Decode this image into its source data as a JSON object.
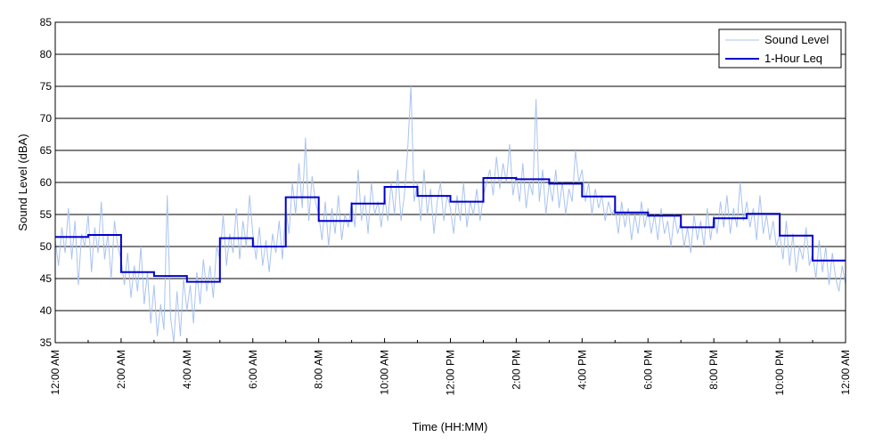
{
  "chart_data": {
    "type": "line",
    "xlabel": "Time (HH:MM)",
    "ylabel": "Sound Level (dBA)",
    "ylim": [
      35,
      85
    ],
    "yticks": [
      35,
      40,
      45,
      50,
      55,
      60,
      65,
      70,
      75,
      80,
      85
    ],
    "xlim_hours": [
      0,
      24
    ],
    "x_tick_hours": [
      0,
      2,
      4,
      6,
      8,
      10,
      12,
      14,
      16,
      18,
      20,
      22,
      24
    ],
    "x_tick_labels": [
      "12:00 AM",
      "2:00 AM",
      "4:00 AM",
      "6:00 AM",
      "8:00 AM",
      "10:00 AM",
      "12:00 PM",
      "2:00 PM",
      "4:00 PM",
      "6:00 PM",
      "8:00 PM",
      "10:00 PM",
      "12:00 AM"
    ],
    "grid": "horizontal",
    "legend_position": "top-right",
    "legend": [
      "Sound Level",
      "1-Hour Leq"
    ],
    "colors": {
      "sound_level": "#a9c3f0",
      "leq": "#0000cc"
    },
    "series": [
      {
        "name": "Sound Level",
        "style": "thin-light-line",
        "points": [
          [
            0.0,
            51
          ],
          [
            0.1,
            47
          ],
          [
            0.2,
            53
          ],
          [
            0.3,
            49
          ],
          [
            0.4,
            56
          ],
          [
            0.5,
            48
          ],
          [
            0.6,
            54
          ],
          [
            0.7,
            44
          ],
          [
            0.8,
            52
          ],
          [
            0.9,
            50
          ],
          [
            1.0,
            55
          ],
          [
            1.1,
            46
          ],
          [
            1.2,
            53
          ],
          [
            1.3,
            49
          ],
          [
            1.4,
            57
          ],
          [
            1.5,
            48
          ],
          [
            1.6,
            52
          ],
          [
            1.7,
            45
          ],
          [
            1.8,
            54
          ],
          [
            1.9,
            50
          ],
          [
            2.0,
            48
          ],
          [
            2.1,
            44
          ],
          [
            2.2,
            49
          ],
          [
            2.3,
            42
          ],
          [
            2.4,
            47
          ],
          [
            2.5,
            43
          ],
          [
            2.6,
            50
          ],
          [
            2.7,
            41
          ],
          [
            2.8,
            46
          ],
          [
            2.9,
            38
          ],
          [
            3.0,
            44
          ],
          [
            3.1,
            36
          ],
          [
            3.2,
            41
          ],
          [
            3.3,
            37
          ],
          [
            3.4,
            58
          ],
          [
            3.5,
            39
          ],
          [
            3.6,
            35
          ],
          [
            3.7,
            43
          ],
          [
            3.8,
            36
          ],
          [
            3.9,
            45
          ],
          [
            4.0,
            40
          ],
          [
            4.1,
            44
          ],
          [
            4.2,
            38
          ],
          [
            4.3,
            46
          ],
          [
            4.4,
            41
          ],
          [
            4.5,
            48
          ],
          [
            4.6,
            43
          ],
          [
            4.7,
            47
          ],
          [
            4.8,
            42
          ],
          [
            4.9,
            50
          ],
          [
            5.0,
            48
          ],
          [
            5.1,
            55
          ],
          [
            5.2,
            47
          ],
          [
            5.3,
            52
          ],
          [
            5.4,
            49
          ],
          [
            5.5,
            56
          ],
          [
            5.6,
            48
          ],
          [
            5.7,
            54
          ],
          [
            5.8,
            50
          ],
          [
            5.9,
            58
          ],
          [
            6.0,
            52
          ],
          [
            6.1,
            48
          ],
          [
            6.2,
            53
          ],
          [
            6.3,
            47
          ],
          [
            6.4,
            51
          ],
          [
            6.5,
            46
          ],
          [
            6.6,
            52
          ],
          [
            6.7,
            49
          ],
          [
            6.8,
            54
          ],
          [
            6.9,
            48
          ],
          [
            7.0,
            56
          ],
          [
            7.1,
            52
          ],
          [
            7.2,
            60
          ],
          [
            7.3,
            55
          ],
          [
            7.4,
            63
          ],
          [
            7.5,
            56
          ],
          [
            7.6,
            67
          ],
          [
            7.7,
            54
          ],
          [
            7.8,
            61
          ],
          [
            7.9,
            57
          ],
          [
            8.0,
            55
          ],
          [
            8.1,
            51
          ],
          [
            8.2,
            57
          ],
          [
            8.3,
            50
          ],
          [
            8.4,
            56
          ],
          [
            8.5,
            52
          ],
          [
            8.6,
            58
          ],
          [
            8.7,
            51
          ],
          [
            8.8,
            55
          ],
          [
            8.9,
            53
          ],
          [
            9.0,
            57
          ],
          [
            9.1,
            53
          ],
          [
            9.2,
            62
          ],
          [
            9.3,
            54
          ],
          [
            9.4,
            58
          ],
          [
            9.5,
            52
          ],
          [
            9.6,
            60
          ],
          [
            9.7,
            55
          ],
          [
            9.8,
            57
          ],
          [
            9.9,
            53
          ],
          [
            10.0,
            58
          ],
          [
            10.1,
            54
          ],
          [
            10.2,
            60
          ],
          [
            10.3,
            55
          ],
          [
            10.4,
            62
          ],
          [
            10.5,
            54
          ],
          [
            10.6,
            58
          ],
          [
            10.7,
            65
          ],
          [
            10.8,
            75
          ],
          [
            10.9,
            57
          ],
          [
            11.0,
            60
          ],
          [
            11.1,
            54
          ],
          [
            11.2,
            62
          ],
          [
            11.3,
            55
          ],
          [
            11.4,
            59
          ],
          [
            11.5,
            52
          ],
          [
            11.6,
            57
          ],
          [
            11.7,
            60
          ],
          [
            11.8,
            54
          ],
          [
            11.9,
            58
          ],
          [
            12.0,
            56
          ],
          [
            12.1,
            52
          ],
          [
            12.2,
            58
          ],
          [
            12.3,
            54
          ],
          [
            12.4,
            60
          ],
          [
            12.5,
            53
          ],
          [
            12.6,
            57
          ],
          [
            12.7,
            55
          ],
          [
            12.8,
            59
          ],
          [
            12.9,
            54
          ],
          [
            13.0,
            58
          ],
          [
            13.1,
            60
          ],
          [
            13.2,
            62
          ],
          [
            13.3,
            58
          ],
          [
            13.4,
            64
          ],
          [
            13.5,
            59
          ],
          [
            13.6,
            63
          ],
          [
            13.7,
            60
          ],
          [
            13.8,
            66
          ],
          [
            13.9,
            58
          ],
          [
            14.0,
            61
          ],
          [
            14.1,
            57
          ],
          [
            14.2,
            63
          ],
          [
            14.3,
            56
          ],
          [
            14.4,
            60
          ],
          [
            14.5,
            58
          ],
          [
            14.6,
            73
          ],
          [
            14.7,
            57
          ],
          [
            14.8,
            62
          ],
          [
            14.9,
            55
          ],
          [
            15.0,
            60
          ],
          [
            15.1,
            57
          ],
          [
            15.2,
            62
          ],
          [
            15.3,
            56
          ],
          [
            15.4,
            60
          ],
          [
            15.5,
            55
          ],
          [
            15.6,
            59
          ],
          [
            15.7,
            57
          ],
          [
            15.8,
            65
          ],
          [
            15.9,
            60
          ],
          [
            16.0,
            62
          ],
          [
            16.1,
            57
          ],
          [
            16.2,
            60
          ],
          [
            16.3,
            55
          ],
          [
            16.4,
            59
          ],
          [
            16.5,
            56
          ],
          [
            16.6,
            58
          ],
          [
            16.7,
            54
          ],
          [
            16.8,
            57
          ],
          [
            16.9,
            55
          ],
          [
            17.0,
            56
          ],
          [
            17.1,
            52
          ],
          [
            17.2,
            57
          ],
          [
            17.3,
            53
          ],
          [
            17.4,
            56
          ],
          [
            17.5,
            51
          ],
          [
            17.6,
            55
          ],
          [
            17.7,
            52
          ],
          [
            17.8,
            57
          ],
          [
            17.9,
            53
          ],
          [
            18.0,
            56
          ],
          [
            18.1,
            52
          ],
          [
            18.2,
            55
          ],
          [
            18.3,
            51
          ],
          [
            18.4,
            56
          ],
          [
            18.5,
            52
          ],
          [
            18.6,
            54
          ],
          [
            18.7,
            50
          ],
          [
            18.8,
            55
          ],
          [
            18.9,
            52
          ],
          [
            19.0,
            54
          ],
          [
            19.1,
            50
          ],
          [
            19.2,
            53
          ],
          [
            19.3,
            49
          ],
          [
            19.4,
            55
          ],
          [
            19.5,
            51
          ],
          [
            19.6,
            54
          ],
          [
            19.7,
            50
          ],
          [
            19.8,
            56
          ],
          [
            19.9,
            51
          ],
          [
            20.0,
            55
          ],
          [
            20.1,
            52
          ],
          [
            20.2,
            57
          ],
          [
            20.3,
            53
          ],
          [
            20.4,
            58
          ],
          [
            20.5,
            52
          ],
          [
            20.6,
            56
          ],
          [
            20.7,
            53
          ],
          [
            20.8,
            60
          ],
          [
            20.9,
            54
          ],
          [
            21.0,
            57
          ],
          [
            21.1,
            53
          ],
          [
            21.2,
            56
          ],
          [
            21.3,
            51
          ],
          [
            21.4,
            58
          ],
          [
            21.5,
            52
          ],
          [
            21.6,
            55
          ],
          [
            21.7,
            51
          ],
          [
            21.8,
            54
          ],
          [
            21.9,
            50
          ],
          [
            22.0,
            52
          ],
          [
            22.1,
            48
          ],
          [
            22.2,
            54
          ],
          [
            22.3,
            47
          ],
          [
            22.4,
            52
          ],
          [
            22.5,
            46
          ],
          [
            22.6,
            50
          ],
          [
            22.7,
            48
          ],
          [
            22.8,
            53
          ],
          [
            22.9,
            47
          ],
          [
            23.0,
            49
          ],
          [
            23.1,
            45
          ],
          [
            23.2,
            51
          ],
          [
            23.3,
            46
          ],
          [
            23.4,
            50
          ],
          [
            23.5,
            44
          ],
          [
            23.6,
            49
          ],
          [
            23.7,
            45
          ],
          [
            23.8,
            43
          ],
          [
            23.9,
            47
          ],
          [
            24.0,
            44
          ]
        ]
      },
      {
        "name": "1-Hour Leq",
        "style": "step",
        "hourly_values": [
          51.5,
          51.8,
          46.0,
          45.4,
          44.5,
          51.3,
          50.0,
          57.7,
          54.0,
          56.7,
          59.3,
          57.9,
          57.0,
          60.7,
          60.5,
          59.8,
          57.8,
          55.3,
          54.8,
          53.0,
          54.4,
          55.1,
          51.7,
          47.8
        ]
      }
    ]
  }
}
